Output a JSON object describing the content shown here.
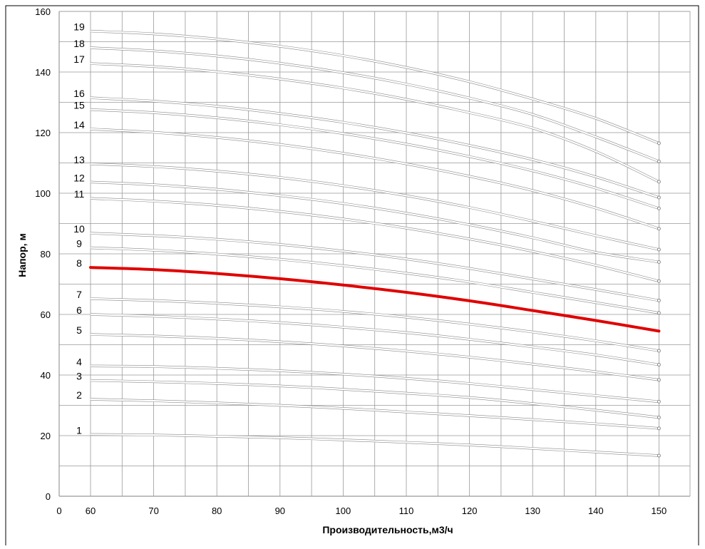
{
  "chart_data": {
    "type": "line",
    "xlabel": "Производительность,м3/ч",
    "ylabel": "Напор, м",
    "xlim": [
      0,
      150
    ],
    "ylim": [
      0,
      160
    ],
    "x_ticks": [
      0,
      60,
      70,
      80,
      90,
      100,
      110,
      120,
      130,
      140,
      150
    ],
    "y_ticks": [
      0,
      20,
      40,
      60,
      80,
      100,
      120,
      140,
      160
    ],
    "grid": true,
    "x": [
      60,
      70,
      80,
      90,
      100,
      110,
      120,
      130,
      140,
      150
    ],
    "series": [
      {
        "name": "1",
        "values": [
          20.4,
          20.2,
          19.8,
          19.3,
          18.6,
          17.8,
          16.9,
          15.8,
          14.6,
          13.4
        ]
      },
      {
        "name": "2",
        "values": [
          32.0,
          31.5,
          30.8,
          30.0,
          29.0,
          27.8,
          26.6,
          25.3,
          23.9,
          22.4
        ]
      },
      {
        "name": "3",
        "values": [
          38.2,
          37.8,
          37.2,
          36.4,
          35.3,
          34.0,
          32.6,
          30.6,
          28.4,
          26.0
        ]
      },
      {
        "name": "4",
        "values": [
          43.0,
          42.8,
          42.2,
          41.4,
          40.3,
          38.9,
          37.2,
          35.2,
          33.2,
          31.2
        ]
      },
      {
        "name": "5",
        "values": [
          53.4,
          52.9,
          52.1,
          51.0,
          49.6,
          47.9,
          45.9,
          43.6,
          41.1,
          38.4
        ]
      },
      {
        "name": "6",
        "values": [
          60.0,
          59.4,
          58.5,
          57.3,
          55.8,
          54.0,
          51.8,
          49.3,
          46.6,
          43.4
        ]
      },
      {
        "name": "7",
        "values": [
          65.2,
          64.6,
          63.7,
          62.5,
          61.0,
          59.1,
          56.8,
          54.2,
          51.3,
          48.0
        ]
      },
      {
        "name": "8",
        "values": [
          75.5,
          74.8,
          73.5,
          71.8,
          69.7,
          67.3,
          64.5,
          61.3,
          58.0,
          54.5
        ]
      },
      {
        "name": "9",
        "values": [
          82.0,
          81.2,
          79.9,
          78.2,
          76.1,
          73.6,
          70.7,
          67.3,
          63.9,
          60.5
        ]
      },
      {
        "name": "10",
        "values": [
          86.8,
          86.0,
          84.8,
          83.1,
          80.9,
          78.3,
          75.2,
          71.7,
          68.2,
          64.6
        ]
      },
      {
        "name": "11",
        "values": [
          98.3,
          97.4,
          96.0,
          94.0,
          91.5,
          88.5,
          84.9,
          80.8,
          76.2,
          71.0
        ]
      },
      {
        "name": "12",
        "values": [
          103.7,
          102.8,
          101.3,
          99.2,
          96.6,
          93.4,
          89.6,
          85.3,
          80.5,
          77.3
        ]
      },
      {
        "name": "13",
        "values": [
          109.7,
          108.8,
          107.3,
          105.2,
          102.5,
          99.2,
          95.3,
          90.8,
          86.0,
          81.4
        ]
      },
      {
        "name": "14",
        "values": [
          121.2,
          120.1,
          118.4,
          116.1,
          113.2,
          109.7,
          105.6,
          100.9,
          95.1,
          88.3
        ]
      },
      {
        "name": "15",
        "values": [
          127.6,
          126.6,
          124.9,
          122.6,
          119.7,
          116.2,
          112.1,
          107.4,
          101.7,
          95.0
        ]
      },
      {
        "name": "16",
        "values": [
          131.5,
          130.4,
          128.7,
          126.3,
          123.4,
          119.9,
          115.8,
          111.1,
          105.4,
          98.6
        ]
      },
      {
        "name": "17",
        "values": [
          142.8,
          141.8,
          140.1,
          137.7,
          134.7,
          131.0,
          126.6,
          121.5,
          113.8,
          103.8
        ]
      },
      {
        "name": "18",
        "values": [
          148.0,
          147.0,
          145.3,
          142.9,
          139.8,
          136.0,
          131.4,
          126.0,
          118.6,
          110.5
        ]
      },
      {
        "name": "19",
        "values": [
          153.5,
          152.6,
          150.9,
          148.5,
          145.4,
          141.5,
          136.8,
          131.1,
          124.7,
          116.5
        ]
      }
    ],
    "highlighted_series": "8",
    "colors": {
      "grid": "#999999",
      "curve": "#c8c8c8",
      "curve_outline": "#8a8a8a",
      "highlight": "#e00000",
      "border": "#000000",
      "background": "#ffffff"
    }
  }
}
